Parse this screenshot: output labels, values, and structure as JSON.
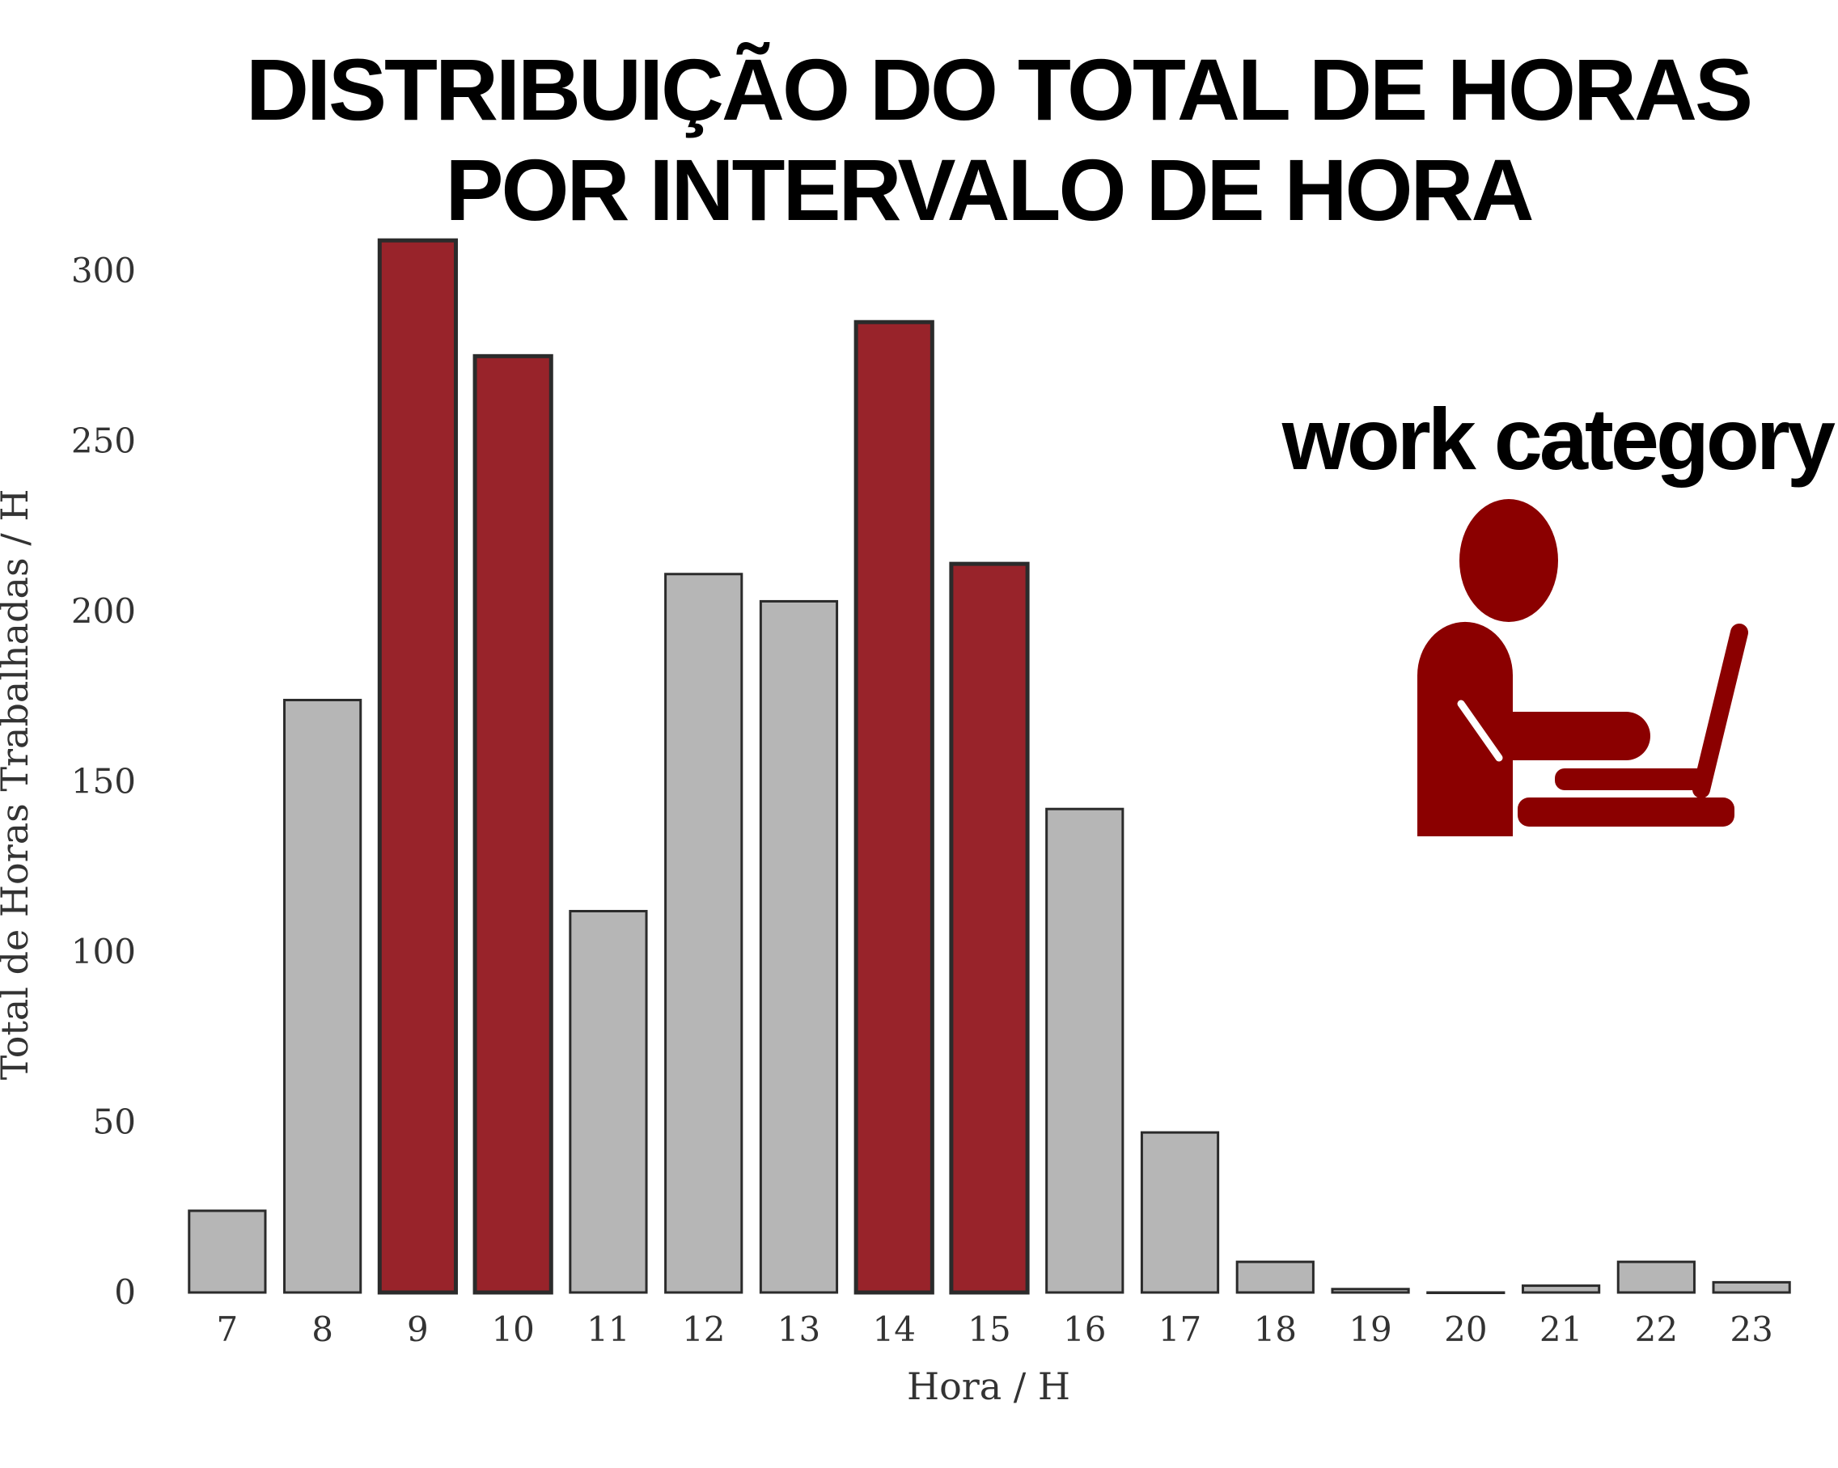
{
  "chart_data": {
    "type": "bar",
    "title_lines": [
      "DISTRIBUIÇÃO DO TOTAL DE HORAS",
      "POR INTERVALO DE HORA"
    ],
    "xlabel": "Hora / H",
    "ylabel": "Total de Horas Trabalhadas / H",
    "categories": [
      "7",
      "8",
      "9",
      "10",
      "11",
      "12",
      "13",
      "14",
      "15",
      "16",
      "17",
      "18",
      "19",
      "20",
      "21",
      "22",
      "23"
    ],
    "values": [
      24,
      174,
      309,
      275,
      112,
      211,
      203,
      285,
      214,
      142,
      47,
      9,
      1,
      0,
      2,
      9,
      3
    ],
    "highlighted": [
      "9",
      "10",
      "14",
      "15"
    ],
    "ylim": [
      0,
      310
    ],
    "yticks": [
      0,
      50,
      100,
      150,
      200,
      250,
      300
    ],
    "grid": false,
    "colors": {
      "highlight": "#98232a",
      "normal": "#b6b6b6",
      "edge": "#2b2b2b",
      "icon": "#8b0000"
    }
  },
  "badge": {
    "text": "work category",
    "icon": "person-at-laptop-icon"
  }
}
